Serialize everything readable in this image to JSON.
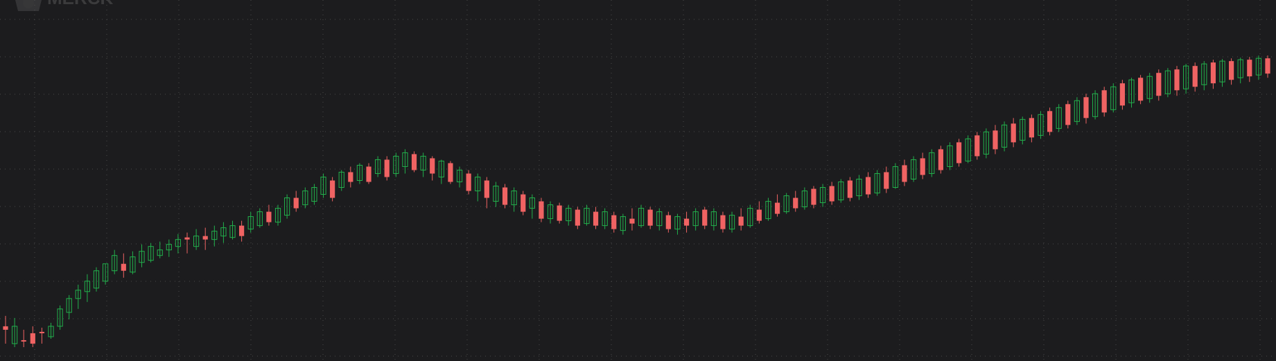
{
  "watermark": {
    "text": "MERCK"
  },
  "colors": {
    "background": "#1c1c1e",
    "grid": "#4a4a4a",
    "up": "#22b14c",
    "down": "#f06363",
    "neutral": "#bdbdbd",
    "watermark": "#5a5a5a"
  },
  "chart_data": {
    "type": "candlestick",
    "title": "",
    "xlabel": "",
    "ylabel": "",
    "grid": true,
    "legend": "none",
    "ylim": [
      0,
      520
    ],
    "x_gridlines": 18,
    "y_gridlines": 10,
    "series": [
      {
        "values": [
          [
            0,
            455,
            495,
            470,
            475
          ],
          [
            1,
            458,
            500,
            495,
            470
          ],
          [
            2,
            475,
            500,
            490,
            490
          ],
          [
            3,
            470,
            500,
            480,
            495
          ],
          [
            4,
            472,
            495,
            478,
            480
          ],
          [
            5,
            465,
            488,
            485,
            470
          ],
          [
            6,
            440,
            475,
            470,
            445
          ],
          [
            7,
            425,
            460,
            450,
            430
          ],
          [
            8,
            410,
            445,
            430,
            418
          ],
          [
            9,
            395,
            435,
            420,
            405
          ],
          [
            10,
            385,
            420,
            415,
            390
          ],
          [
            11,
            380,
            410,
            405,
            380
          ],
          [
            12,
            360,
            395,
            390,
            368
          ],
          [
            13,
            365,
            400,
            380,
            390
          ],
          [
            14,
            362,
            395,
            392,
            370
          ],
          [
            15,
            352,
            385,
            378,
            362
          ],
          [
            16,
            350,
            378,
            375,
            355
          ],
          [
            17,
            348,
            372,
            368,
            360
          ],
          [
            18,
            345,
            370,
            360,
            352
          ],
          [
            19,
            337,
            365,
            355,
            345
          ],
          [
            20,
            335,
            365,
            342,
            345
          ],
          [
            21,
            330,
            360,
            355,
            340
          ],
          [
            22,
            328,
            360,
            340,
            345
          ],
          [
            23,
            325,
            355,
            345,
            333
          ],
          [
            24,
            320,
            350,
            340,
            328
          ],
          [
            25,
            318,
            345,
            342,
            325
          ],
          [
            26,
            318,
            348,
            325,
            340
          ],
          [
            27,
            305,
            335,
            330,
            312
          ],
          [
            28,
            300,
            328,
            325,
            305
          ],
          [
            29,
            295,
            325,
            305,
            320
          ],
          [
            30,
            295,
            325,
            320,
            300
          ],
          [
            31,
            280,
            315,
            310,
            285
          ],
          [
            32,
            275,
            305,
            285,
            300
          ],
          [
            33,
            270,
            300,
            295,
            275
          ],
          [
            34,
            265,
            295,
            290,
            270
          ],
          [
            35,
            250,
            285,
            280,
            255
          ],
          [
            36,
            255,
            290,
            260,
            285
          ],
          [
            37,
            245,
            275,
            270,
            248
          ],
          [
            38,
            240,
            270,
            248,
            262
          ],
          [
            39,
            235,
            265,
            260,
            238
          ],
          [
            40,
            235,
            265,
            240,
            262
          ],
          [
            41,
            225,
            255,
            250,
            230
          ],
          [
            42,
            225,
            260,
            230,
            255
          ],
          [
            43,
            220,
            255,
            250,
            225
          ],
          [
            44,
            215,
            250,
            240,
            220
          ],
          [
            45,
            218,
            248,
            222,
            245
          ],
          [
            46,
            220,
            255,
            245,
            225
          ],
          [
            47,
            225,
            260,
            228,
            250
          ],
          [
            48,
            230,
            265,
            255,
            232
          ],
          [
            49,
            232,
            265,
            235,
            262
          ],
          [
            50,
            240,
            270,
            262,
            245
          ],
          [
            51,
            245,
            280,
            250,
            275
          ],
          [
            52,
            250,
            290,
            275,
            255
          ],
          [
            53,
            255,
            300,
            260,
            285
          ],
          [
            54,
            262,
            298,
            290,
            268
          ],
          [
            55,
            265,
            300,
            270,
            295
          ],
          [
            56,
            270,
            305,
            295,
            275
          ],
          [
            57,
            275,
            310,
            280,
            305
          ],
          [
            58,
            280,
            315,
            300,
            285
          ],
          [
            59,
            285,
            320,
            290,
            315
          ],
          [
            60,
            290,
            322,
            315,
            295
          ],
          [
            61,
            292,
            322,
            296,
            318
          ],
          [
            62,
            295,
            325,
            318,
            300
          ],
          [
            63,
            298,
            330,
            302,
            325
          ],
          [
            64,
            295,
            325,
            322,
            300
          ],
          [
            65,
            298,
            330,
            305,
            325
          ],
          [
            66,
            300,
            330,
            325,
            305
          ],
          [
            67,
            305,
            335,
            310,
            330
          ],
          [
            68,
            308,
            338,
            332,
            312
          ],
          [
            69,
            300,
            332,
            315,
            322
          ],
          [
            70,
            295,
            328,
            325,
            300
          ],
          [
            71,
            298,
            330,
            302,
            325
          ],
          [
            72,
            300,
            332,
            325,
            305
          ],
          [
            73,
            305,
            335,
            310,
            330
          ],
          [
            74,
            308,
            338,
            330,
            312
          ],
          [
            75,
            305,
            335,
            315,
            325
          ],
          [
            76,
            300,
            332,
            325,
            305
          ],
          [
            77,
            298,
            330,
            302,
            325
          ],
          [
            78,
            300,
            332,
            325,
            305
          ],
          [
            79,
            305,
            335,
            310,
            330
          ],
          [
            80,
            305,
            335,
            330,
            310
          ],
          [
            81,
            300,
            332,
            312,
            325
          ],
          [
            82,
            295,
            328,
            325,
            300
          ],
          [
            83,
            290,
            322,
            302,
            318
          ],
          [
            84,
            285,
            318,
            315,
            290
          ],
          [
            85,
            280,
            312,
            292,
            308
          ],
          [
            86,
            278,
            308,
            305,
            282
          ],
          [
            87,
            275,
            305,
            285,
            300
          ],
          [
            88,
            270,
            302,
            298,
            275
          ],
          [
            89,
            268,
            300,
            272,
            295
          ],
          [
            90,
            265,
            298,
            292,
            270
          ],
          [
            91,
            262,
            295,
            268,
            290
          ],
          [
            92,
            258,
            292,
            288,
            262
          ],
          [
            93,
            255,
            290,
            260,
            285
          ],
          [
            94,
            252,
            288,
            282,
            258
          ],
          [
            95,
            248,
            285,
            255,
            280
          ],
          [
            96,
            245,
            282,
            278,
            250
          ],
          [
            97,
            240,
            278,
            248,
            272
          ],
          [
            98,
            235,
            272,
            270,
            240
          ],
          [
            99,
            230,
            268,
            238,
            262
          ],
          [
            100,
            225,
            262,
            258,
            230
          ],
          [
            101,
            220,
            258,
            228,
            252
          ],
          [
            102,
            215,
            255,
            250,
            220
          ],
          [
            103,
            210,
            250,
            215,
            245
          ],
          [
            104,
            205,
            245,
            240,
            210
          ],
          [
            105,
            200,
            240,
            205,
            235
          ],
          [
            106,
            195,
            235,
            232,
            200
          ],
          [
            107,
            190,
            230,
            195,
            225
          ],
          [
            108,
            185,
            228,
            222,
            190
          ],
          [
            109,
            180,
            222,
            188,
            215
          ],
          [
            110,
            175,
            218,
            212,
            180
          ],
          [
            111,
            170,
            212,
            178,
            205
          ],
          [
            112,
            168,
            208,
            202,
            172
          ],
          [
            113,
            165,
            205,
            170,
            198
          ],
          [
            114,
            160,
            200,
            195,
            165
          ],
          [
            115,
            155,
            195,
            160,
            190
          ],
          [
            116,
            150,
            190,
            185,
            155
          ],
          [
            117,
            145,
            185,
            150,
            180
          ],
          [
            118,
            140,
            180,
            175,
            145
          ],
          [
            119,
            135,
            178,
            140,
            170
          ],
          [
            120,
            130,
            172,
            168,
            135
          ],
          [
            121,
            125,
            168,
            130,
            162
          ],
          [
            122,
            120,
            162,
            158,
            125
          ],
          [
            123,
            115,
            158,
            120,
            152
          ],
          [
            124,
            112,
            155,
            148,
            115
          ],
          [
            125,
            108,
            150,
            112,
            145
          ],
          [
            126,
            105,
            148,
            142,
            110
          ],
          [
            127,
            100,
            145,
            105,
            138
          ],
          [
            128,
            98,
            140,
            135,
            102
          ],
          [
            129,
            95,
            138,
            100,
            130
          ],
          [
            130,
            92,
            135,
            128,
            95
          ],
          [
            131,
            90,
            132,
            95,
            125
          ],
          [
            132,
            88,
            130,
            122,
            92
          ],
          [
            133,
            86,
            128,
            90,
            120
          ],
          [
            134,
            85,
            125,
            118,
            88
          ],
          [
            135,
            84,
            122,
            88,
            115
          ],
          [
            136,
            83,
            120,
            112,
            86
          ],
          [
            137,
            82,
            118,
            86,
            110
          ],
          [
            138,
            80,
            115,
            108,
            84
          ],
          [
            139,
            80,
            112,
            84,
            106
          ]
        ]
      }
    ]
  }
}
